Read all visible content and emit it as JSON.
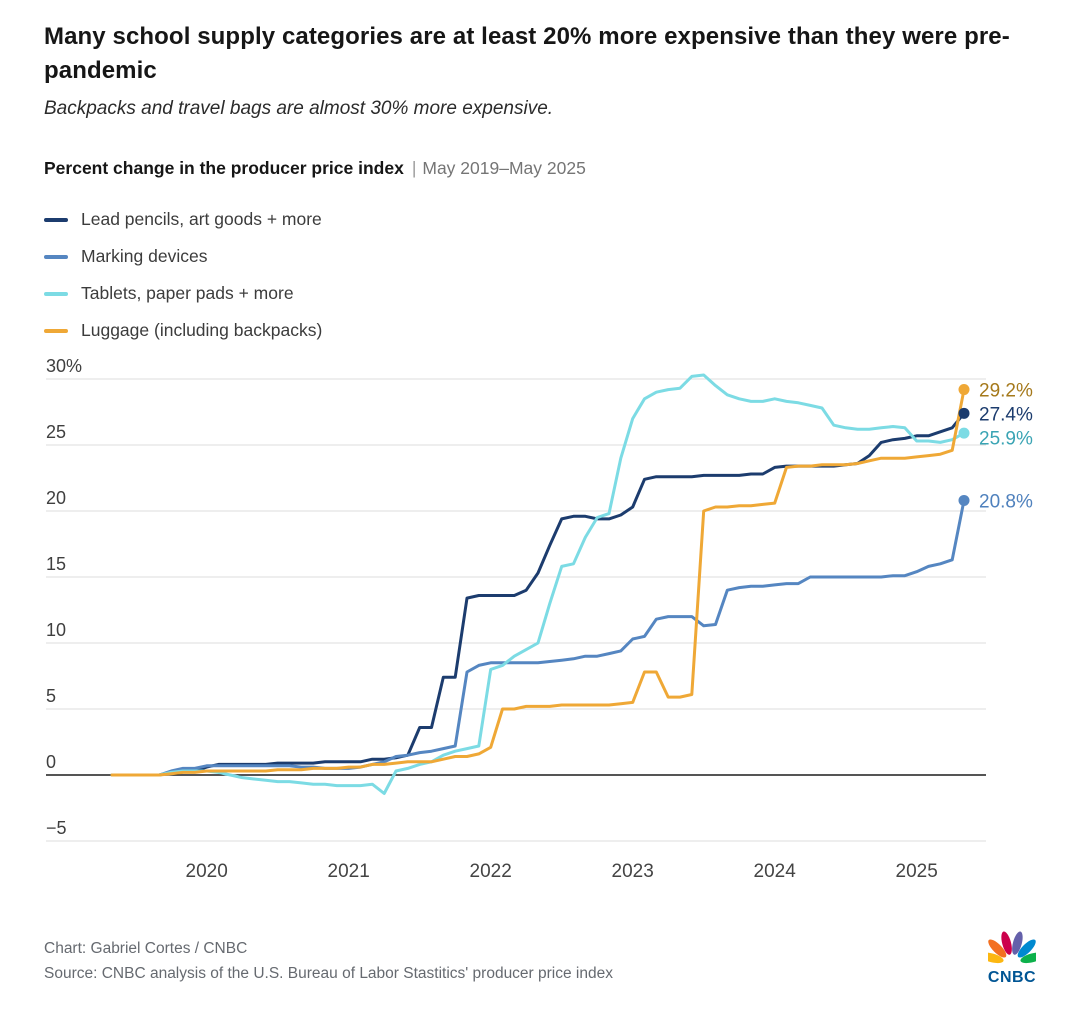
{
  "header": {
    "title": "Many school supply categories are at least 20% more expensive than they were pre-pandemic",
    "subtitle": "Backpacks and travel bags are almost 30% more expensive."
  },
  "chart_label": {
    "text": "Percent change in the producer price index",
    "separator": "|",
    "date_range": "May 2019–May 2025"
  },
  "chart_data": {
    "type": "line",
    "title": "Percent change in the producer price index",
    "x_unit": "month",
    "x_start": "2019-05",
    "x_end": "2025-05",
    "ylim": [
      -5,
      30
    ],
    "grid": true,
    "y_ticks": [
      {
        "value": 30,
        "label": "30%"
      },
      {
        "value": 25,
        "label": "25"
      },
      {
        "value": 20,
        "label": "20"
      },
      {
        "value": 15,
        "label": "15"
      },
      {
        "value": 10,
        "label": "10"
      },
      {
        "value": 5,
        "label": "5"
      },
      {
        "value": 0,
        "label": "0"
      },
      {
        "value": -5,
        "label": "−5"
      }
    ],
    "x_ticks": [
      {
        "month_index": 8,
        "label": "2020"
      },
      {
        "month_index": 20,
        "label": "2021"
      },
      {
        "month_index": 32,
        "label": "2022"
      },
      {
        "month_index": 44,
        "label": "2023"
      },
      {
        "month_index": 56,
        "label": "2024"
      },
      {
        "month_index": 68,
        "label": "2025"
      }
    ],
    "series": [
      {
        "name": "Lead pencils, art goods + more",
        "color": "#1c3c6e",
        "label_color": "#1c3c6e",
        "end_label": "27.4%",
        "values": [
          0,
          0,
          0,
          0,
          0,
          0.2,
          0.3,
          0.3,
          0.6,
          0.8,
          0.8,
          0.8,
          0.8,
          0.8,
          0.9,
          0.9,
          0.9,
          0.9,
          1.0,
          1.0,
          1.0,
          1.0,
          1.2,
          1.2,
          1.3,
          1.5,
          3.6,
          3.6,
          7.4,
          7.4,
          13.4,
          13.6,
          13.6,
          13.6,
          13.6,
          14.0,
          15.3,
          17.4,
          19.4,
          19.6,
          19.6,
          19.4,
          19.4,
          19.7,
          20.3,
          22.4,
          22.6,
          22.6,
          22.6,
          22.6,
          22.7,
          22.7,
          22.7,
          22.7,
          22.8,
          22.8,
          23.3,
          23.4,
          23.4,
          23.4,
          23.4,
          23.4,
          23.5,
          23.6,
          24.2,
          25.2,
          25.4,
          25.5,
          25.7,
          25.7,
          26.0,
          26.3,
          27.4
        ]
      },
      {
        "name": "Marking devices",
        "color": "#5586c1",
        "label_color": "#4f81bd",
        "end_label": "20.8%",
        "values": [
          0,
          0,
          0,
          0,
          0,
          0.3,
          0.5,
          0.5,
          0.7,
          0.7,
          0.7,
          0.7,
          0.7,
          0.7,
          0.7,
          0.7,
          0.6,
          0.6,
          0.5,
          0.5,
          0.5,
          0.6,
          0.8,
          1.0,
          1.4,
          1.5,
          1.7,
          1.8,
          2.0,
          2.2,
          7.8,
          8.3,
          8.5,
          8.5,
          8.5,
          8.5,
          8.5,
          8.6,
          8.7,
          8.8,
          9.0,
          9.0,
          9.2,
          9.4,
          10.3,
          10.5,
          11.8,
          12.0,
          12.0,
          12.0,
          11.3,
          11.4,
          14.0,
          14.2,
          14.3,
          14.3,
          14.4,
          14.5,
          14.5,
          15.0,
          15.0,
          15.0,
          15.0,
          15.0,
          15.0,
          15.0,
          15.1,
          15.1,
          15.4,
          15.8,
          16.0,
          16.3,
          20.8
        ]
      },
      {
        "name": "Tablets, paper pads + more",
        "color": "#7cdbe4",
        "label_color": "#3aa4b4",
        "end_label": "25.9%",
        "values": [
          0,
          0,
          0,
          0,
          0,
          0.2,
          0.3,
          0.3,
          0.3,
          0.2,
          0,
          -0.2,
          -0.3,
          -0.4,
          -0.5,
          -0.5,
          -0.6,
          -0.7,
          -0.7,
          -0.8,
          -0.8,
          -0.8,
          -0.7,
          -1.4,
          0.3,
          0.5,
          0.8,
          1.0,
          1.5,
          1.8,
          2.0,
          2.2,
          8.0,
          8.3,
          9.0,
          9.5,
          10.0,
          13.0,
          15.8,
          16.0,
          18.0,
          19.5,
          19.8,
          24.0,
          27.0,
          28.5,
          29.0,
          29.2,
          29.3,
          30.2,
          30.3,
          29.5,
          28.8,
          28.5,
          28.3,
          28.3,
          28.5,
          28.3,
          28.2,
          28.0,
          27.8,
          26.5,
          26.3,
          26.2,
          26.2,
          26.3,
          26.4,
          26.3,
          25.3,
          25.3,
          25.2,
          25.4,
          25.9
        ]
      },
      {
        "name": "Luggage (including backpacks)",
        "color": "#efa836",
        "label_color": "#a5791b",
        "end_label": "29.2%",
        "values": [
          0,
          0,
          0,
          0,
          0,
          0.1,
          0.2,
          0.2,
          0.3,
          0.3,
          0.3,
          0.3,
          0.3,
          0.3,
          0.4,
          0.4,
          0.4,
          0.5,
          0.5,
          0.5,
          0.6,
          0.6,
          0.8,
          0.8,
          0.9,
          1.0,
          1.0,
          1.0,
          1.2,
          1.4,
          1.4,
          1.6,
          2.1,
          5.0,
          5.0,
          5.2,
          5.2,
          5.2,
          5.3,
          5.3,
          5.3,
          5.3,
          5.3,
          5.4,
          5.5,
          7.8,
          7.8,
          5.9,
          5.9,
          6.1,
          20.0,
          20.3,
          20.3,
          20.4,
          20.4,
          20.5,
          20.6,
          23.3,
          23.4,
          23.4,
          23.5,
          23.5,
          23.5,
          23.6,
          23.8,
          24.0,
          24.0,
          24.0,
          24.1,
          24.2,
          24.3,
          24.6,
          29.2
        ]
      }
    ]
  },
  "footer": {
    "credit": "Chart: Gabriel Cortes / CNBC",
    "source": "Source: CNBC analysis of the U.S. Bureau of Labor Stastitics' producer price index",
    "logo_text": "CNBC"
  },
  "logo_colors": [
    "#fcb711",
    "#f37021",
    "#cc004c",
    "#6460aa",
    "#0089d0",
    "#0db14b"
  ]
}
